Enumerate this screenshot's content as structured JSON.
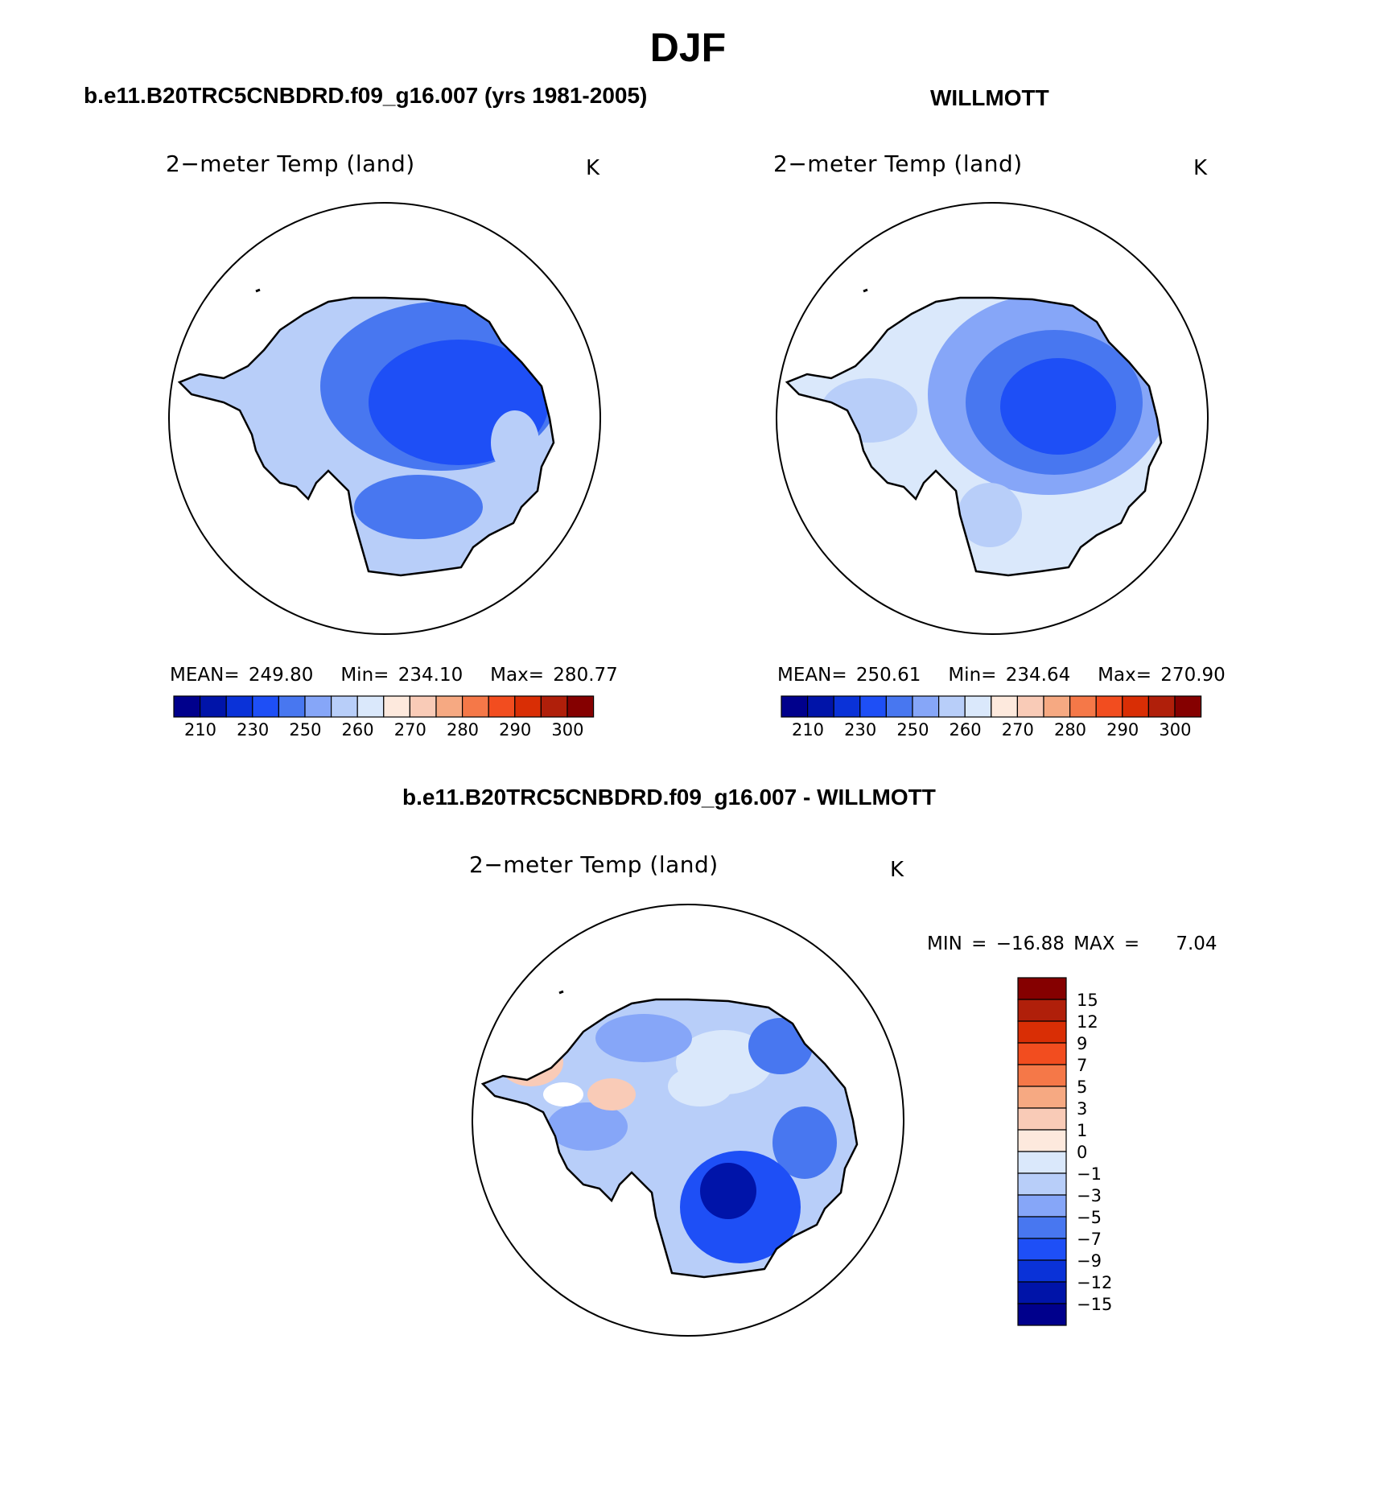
{
  "figure": {
    "season": "DJF",
    "left_header": "b.e11.B20TRC5CNBDRD.f09_g16.007 (yrs 1981-2005)",
    "right_header": "WILLMOTT",
    "diff_header": "b.e11.B20TRC5CNBDRD.f09_g16.007 - WILLMOTT"
  },
  "panels": {
    "model": {
      "variable": "2−meter Temp (land)",
      "units": "K",
      "mean_label": "MEAN=",
      "mean": "249.80",
      "min_label": "Min=",
      "min": "234.10",
      "max_label": "Max=",
      "max": "280.77"
    },
    "obs": {
      "variable": "2−meter Temp (land)",
      "units": "K",
      "mean_label": "MEAN=",
      "mean": "250.61",
      "min_label": "Min=",
      "min": "234.64",
      "max_label": "Max=",
      "max": "270.90"
    },
    "diff": {
      "variable": "2−meter Temp (land)",
      "units": "K",
      "min_label": "MIN =",
      "min": "−16.88",
      "max_label": "MAX =",
      "max": "7.04"
    }
  },
  "abs_colorbar": {
    "colors": [
      "#00008c",
      "#0014a9",
      "#0a32d8",
      "#1e4ff6",
      "#4877f0",
      "#86a6f8",
      "#b8cef9",
      "#dae8fb",
      "#fde9dd",
      "#f9cbb7",
      "#f6a982",
      "#f57848",
      "#f24d1f",
      "#d92e05",
      "#b01f0a",
      "#850000"
    ],
    "labels": [
      "210",
      "230",
      "250",
      "260",
      "270",
      "280",
      "290",
      "300"
    ]
  },
  "diff_colorbar": {
    "colors_top_to_bottom": [
      "#850000",
      "#b01f0a",
      "#d92e05",
      "#f24d1f",
      "#f57848",
      "#f6a982",
      "#f9cbb7",
      "#fde9dd",
      "#dae8fb",
      "#b8cef9",
      "#86a6f8",
      "#4877f0",
      "#1e4ff6",
      "#0a32d8",
      "#0014a9",
      "#00008c"
    ],
    "labels": [
      "15",
      "12",
      "9",
      "7",
      "5",
      "3",
      "1",
      "0",
      "−1",
      "−3",
      "−5",
      "−7",
      "−9",
      "−12",
      "−15"
    ]
  },
  "chart_data": {
    "type": "map",
    "projection": "south polar stereographic",
    "region": "Antarctica",
    "season": "DJF",
    "panels": [
      {
        "title": "b.e11.B20TRC5CNBDRD.f09_g16.007 (yrs 1981-2005)",
        "variable": "2-meter Temp (land)",
        "units": "K",
        "mean": 249.8,
        "min": 234.1,
        "max": 280.77,
        "contour_levels": [
          210,
          220,
          230,
          240,
          250,
          255,
          260,
          265,
          270,
          275,
          280,
          285,
          290,
          295,
          300
        ]
      },
      {
        "title": "WILLMOTT",
        "variable": "2-meter Temp (land)",
        "units": "K",
        "mean": 250.61,
        "min": 234.64,
        "max": 270.9,
        "contour_levels": [
          210,
          220,
          230,
          240,
          250,
          255,
          260,
          265,
          270,
          275,
          280,
          285,
          290,
          295,
          300
        ]
      },
      {
        "title": "b.e11.B20TRC5CNBDRD.f09_g16.007 - WILLMOTT",
        "variable": "2-meter Temp (land)",
        "units": "K",
        "min": -16.88,
        "max": 7.04,
        "contour_levels": [
          -15,
          -12,
          -9,
          -7,
          -5,
          -3,
          -1,
          0,
          1,
          3,
          5,
          7,
          9,
          12,
          15
        ]
      }
    ]
  }
}
